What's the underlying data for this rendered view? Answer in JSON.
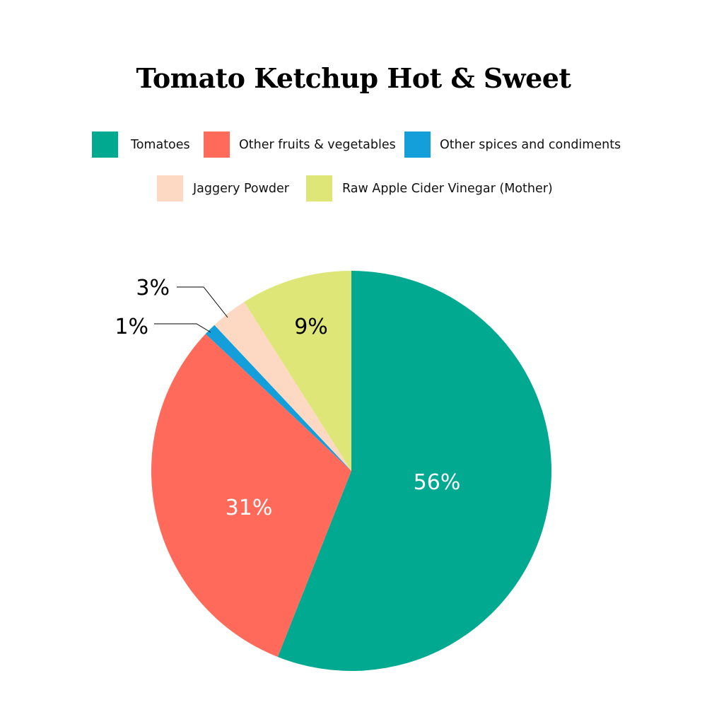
{
  "chart_data": {
    "type": "pie",
    "title": "Tomato Ketchup Hot & Sweet",
    "legend_position": "top",
    "categories": [
      "Tomatoes",
      "Other fruits & vegetables",
      "Other spices and condiments",
      "Jaggery Powder",
      "Raw Apple Cider Vinegar (Mother)"
    ],
    "values": [
      56,
      31,
      1,
      3,
      9
    ],
    "data_labels": [
      "56%",
      "31%",
      "1%",
      "3%",
      "9%"
    ],
    "colors": [
      "#00A990",
      "#FF6A5A",
      "#149FDA",
      "#FDD9C3",
      "#DDE676"
    ],
    "start_angle": "12 o'clock",
    "direction": "clockwise"
  }
}
